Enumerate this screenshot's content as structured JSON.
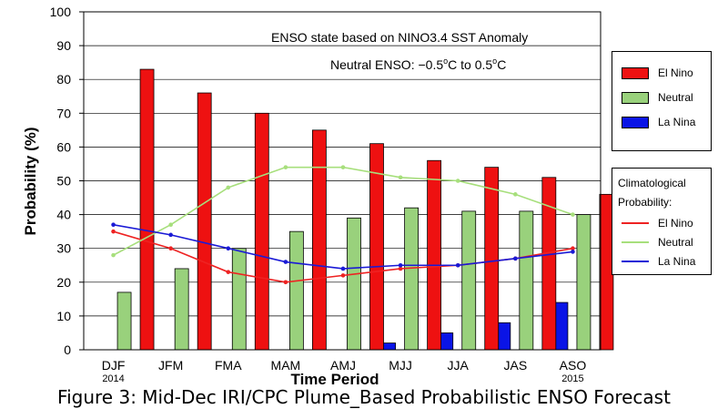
{
  "caption": "Figure 3: Mid-Dec IRI/CPC Plume_Based Probabilistic ENSO Forecast",
  "chart_data": {
    "type": "bar",
    "annotation_line1": "ENSO state based on NINO3.4 SST Anomaly",
    "annotation_line2_prefix": "Neutral ENSO: −0.5",
    "annotation_line2_mid": "C to 0.5",
    "annotation_line2_suffix": "C",
    "annotation_degree": "o",
    "xlabel": "Time Period",
    "ylabel": "Probability (%)",
    "ylim": [
      0,
      100
    ],
    "yticks": [
      0,
      10,
      20,
      30,
      40,
      50,
      60,
      70,
      80,
      90,
      100
    ],
    "categories": [
      "DJF",
      "JFM",
      "FMA",
      "MAM",
      "AMJ",
      "MJJ",
      "JJA",
      "JAS",
      "ASO"
    ],
    "year_labels": [
      {
        "category_index": 0,
        "text": "2014"
      },
      {
        "category_index": 8,
        "text": "2015"
      }
    ],
    "grid": true,
    "series": [
      {
        "name": "La Nina",
        "color": "#0a14e6",
        "values": [
          0,
          0,
          0,
          0,
          0,
          2,
          5,
          8,
          14
        ]
      },
      {
        "name": "Neutral",
        "color": "#99d17c",
        "values": [
          17,
          24,
          30,
          35,
          39,
          42,
          41,
          41,
          40
        ]
      },
      {
        "name": "El Nino",
        "color": "#ee1111",
        "values": [
          83,
          76,
          70,
          65,
          61,
          56,
          54,
          51,
          46
        ]
      }
    ],
    "climatology_title_line1": "Climatological",
    "climatology_title_line2": "Probability:",
    "climatology": [
      {
        "name": "El Nino",
        "color": "#ee2222",
        "values": [
          35,
          30,
          23,
          20,
          22,
          24,
          25,
          27,
          30
        ]
      },
      {
        "name": "Neutral",
        "color": "#a7df7c",
        "values": [
          28,
          37,
          48,
          54,
          54,
          51,
          50,
          46,
          40
        ]
      },
      {
        "name": "La Nina",
        "color": "#1a1ad6",
        "values": [
          37,
          34,
          30,
          26,
          24,
          25,
          25,
          27,
          29
        ]
      }
    ],
    "legend_order": [
      "El Nino",
      "Neutral",
      "La Nina"
    ]
  }
}
